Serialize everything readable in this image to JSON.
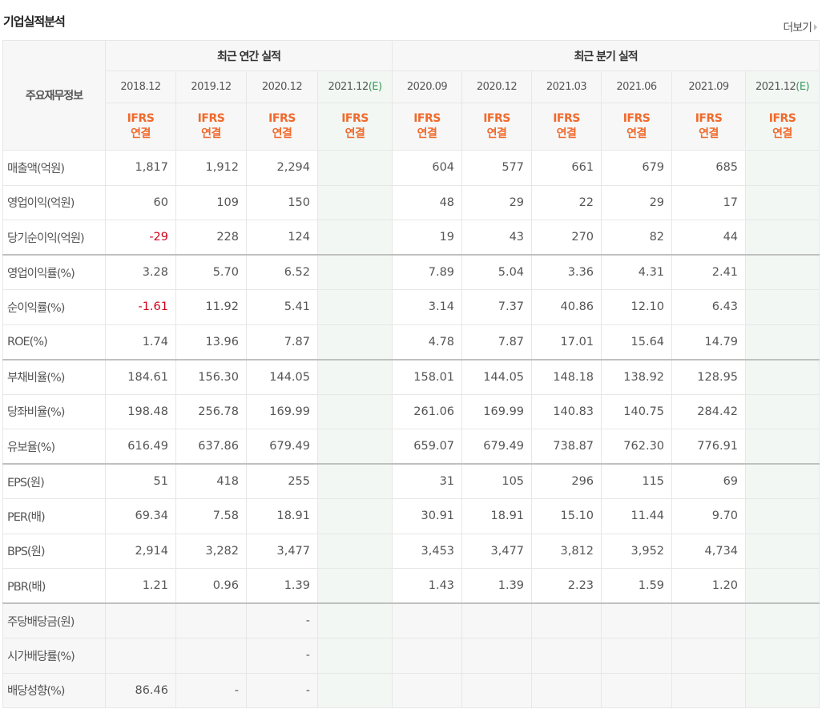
{
  "header": {
    "title": "기업실적분석",
    "more_label": "더보기"
  },
  "table": {
    "corner_label": "주요재무정보",
    "annual_group_label": "최근 연간 실적",
    "quarter_group_label": "최근 분기 실적",
    "annual_periods": [
      {
        "date": "2018.12",
        "est": "",
        "ifrs": "IFRS",
        "type": "연결"
      },
      {
        "date": "2019.12",
        "est": "",
        "ifrs": "IFRS",
        "type": "연결"
      },
      {
        "date": "2020.12",
        "est": "",
        "ifrs": "IFRS",
        "type": "연결"
      },
      {
        "date": "2021.12",
        "est": "(E)",
        "ifrs": "IFRS",
        "type": "연결"
      }
    ],
    "quarter_periods": [
      {
        "date": "2020.09",
        "est": "",
        "ifrs": "IFRS",
        "type": "연결"
      },
      {
        "date": "2020.12",
        "est": "",
        "ifrs": "IFRS",
        "type": "연결"
      },
      {
        "date": "2021.03",
        "est": "",
        "ifrs": "IFRS",
        "type": "연결"
      },
      {
        "date": "2021.06",
        "est": "",
        "ifrs": "IFRS",
        "type": "연결"
      },
      {
        "date": "2021.09",
        "est": "",
        "ifrs": "IFRS",
        "type": "연결"
      },
      {
        "date": "2021.12",
        "est": "(E)",
        "ifrs": "IFRS",
        "type": "연결"
      }
    ],
    "rows": [
      {
        "label": "매출액(억원)",
        "annual": [
          "1,817",
          "1,912",
          "2,294",
          ""
        ],
        "quarter": [
          "604",
          "577",
          "661",
          "679",
          "685",
          ""
        ]
      },
      {
        "label": "영업이익(억원)",
        "annual": [
          "60",
          "109",
          "150",
          ""
        ],
        "quarter": [
          "48",
          "29",
          "22",
          "29",
          "17",
          ""
        ]
      },
      {
        "label": "당기순이익(억원)",
        "annual": [
          "-29",
          "228",
          "124",
          ""
        ],
        "quarter": [
          "19",
          "43",
          "270",
          "82",
          "44",
          ""
        ]
      },
      {
        "label": "영업이익률(%)",
        "annual": [
          "3.28",
          "5.70",
          "6.52",
          ""
        ],
        "quarter": [
          "7.89",
          "5.04",
          "3.36",
          "4.31",
          "2.41",
          ""
        ]
      },
      {
        "label": "순이익률(%)",
        "annual": [
          "-1.61",
          "11.92",
          "5.41",
          ""
        ],
        "quarter": [
          "3.14",
          "7.37",
          "40.86",
          "12.10",
          "6.43",
          ""
        ]
      },
      {
        "label": "ROE(%)",
        "annual": [
          "1.74",
          "13.96",
          "7.87",
          ""
        ],
        "quarter": [
          "4.78",
          "7.87",
          "17.01",
          "15.64",
          "14.79",
          ""
        ]
      },
      {
        "label": "부채비율(%)",
        "annual": [
          "184.61",
          "156.30",
          "144.05",
          ""
        ],
        "quarter": [
          "158.01",
          "144.05",
          "148.18",
          "138.92",
          "128.95",
          ""
        ]
      },
      {
        "label": "당좌비율(%)",
        "annual": [
          "198.48",
          "256.78",
          "169.99",
          ""
        ],
        "quarter": [
          "261.06",
          "169.99",
          "140.83",
          "140.75",
          "284.42",
          ""
        ]
      },
      {
        "label": "유보율(%)",
        "annual": [
          "616.49",
          "637.86",
          "679.49",
          ""
        ],
        "quarter": [
          "659.07",
          "679.49",
          "738.87",
          "762.30",
          "776.91",
          ""
        ]
      },
      {
        "label": "EPS(원)",
        "annual": [
          "51",
          "418",
          "255",
          ""
        ],
        "quarter": [
          "31",
          "105",
          "296",
          "115",
          "69",
          ""
        ]
      },
      {
        "label": "PER(배)",
        "annual": [
          "69.34",
          "7.58",
          "18.91",
          ""
        ],
        "quarter": [
          "30.91",
          "18.91",
          "15.10",
          "11.44",
          "9.70",
          ""
        ]
      },
      {
        "label": "BPS(원)",
        "annual": [
          "2,914",
          "3,282",
          "3,477",
          ""
        ],
        "quarter": [
          "3,453",
          "3,477",
          "3,812",
          "3,952",
          "4,734",
          ""
        ]
      },
      {
        "label": "PBR(배)",
        "annual": [
          "1.21",
          "0.96",
          "1.39",
          ""
        ],
        "quarter": [
          "1.43",
          "1.39",
          "2.23",
          "1.59",
          "1.20",
          ""
        ]
      },
      {
        "label": "주당배당금(원)",
        "annual": [
          "",
          "",
          "-",
          ""
        ],
        "quarter": [
          "",
          "",
          "",
          "",
          "",
          ""
        ]
      },
      {
        "label": "시가배당률(%)",
        "annual": [
          "",
          "",
          "-",
          ""
        ],
        "quarter": [
          "",
          "",
          "",
          "",
          "",
          ""
        ]
      },
      {
        "label": "배당성향(%)",
        "annual": [
          "86.46",
          "-",
          "-",
          ""
        ],
        "quarter": [
          "",
          "",
          "",
          "",
          "",
          ""
        ]
      }
    ],
    "group_starts": [
      3,
      6,
      9,
      13
    ],
    "grey_rows": [
      13,
      14,
      15
    ]
  },
  "colors": {
    "ifrs_orange": "#f06a2c",
    "negative_red": "#d0021b",
    "estimate_green": "#3a9a5a",
    "estimate_col_bg": "#f2f7f4"
  }
}
